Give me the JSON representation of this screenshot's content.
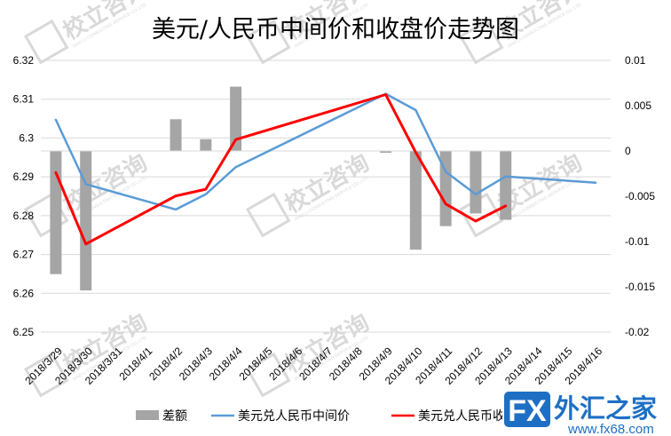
{
  "chart_data": {
    "type": "bar+line",
    "title": "美元/人民币中间价和收盘价走势图",
    "categories": [
      "2018/3/29",
      "2018/3/30",
      "2018/3/31",
      "2018/4/1",
      "2018/4/2",
      "2018/4/3",
      "2018/4/4",
      "2018/4/5",
      "2018/4/6",
      "2018/4/7",
      "2018/4/8",
      "2018/4/9",
      "2018/4/10",
      "2018/4/11",
      "2018/4/12",
      "2018/4/13",
      "2018/4/14",
      "2018/4/15",
      "2018/4/16"
    ],
    "y_left": {
      "min": 6.25,
      "max": 6.32,
      "step": 0.01,
      "ticks": [
        "6.25",
        "6.26",
        "6.27",
        "6.28",
        "6.29",
        "6.3",
        "6.31",
        "6.32"
      ]
    },
    "y_right": {
      "min": -0.02,
      "max": 0.01,
      "step": 0.005,
      "ticks": [
        "-0.02",
        "-0.015",
        "-0.01",
        "-0.005",
        "0",
        "0.005",
        "0.01"
      ]
    },
    "legend_position": "bottom",
    "series": [
      {
        "name": "差额",
        "type": "bar",
        "axis": "right",
        "color": "#a5a5a5",
        "values": [
          -0.0136,
          -0.0154,
          null,
          null,
          0.0035,
          0.0013,
          0.0071,
          null,
          null,
          null,
          null,
          -0.0002,
          -0.0109,
          -0.0083,
          -0.0069,
          -0.0076,
          null,
          null,
          null
        ]
      },
      {
        "name": "美元兑人民币中间价",
        "type": "line",
        "axis": "left",
        "color": "#5b9bd5",
        "values": [
          6.3047,
          6.2881,
          null,
          null,
          6.2816,
          6.2855,
          6.2925,
          null,
          null,
          null,
          null,
          6.3114,
          6.3072,
          6.2913,
          6.2855,
          6.2901,
          null,
          null,
          6.2885
        ]
      },
      {
        "name": "美元兑人民币收盘价",
        "type": "line",
        "axis": "left",
        "color": "#ff0000",
        "values": [
          6.2911,
          6.2727,
          null,
          null,
          6.2851,
          6.2868,
          6.2996,
          null,
          null,
          null,
          null,
          6.3112,
          6.2963,
          6.283,
          6.2786,
          6.2825,
          null,
          null,
          null
        ]
      }
    ]
  },
  "watermark": {
    "text": "校立咨询",
    "sub": "XIAO LI CONSULTING SERVICE CO.,LTD",
    "color": "#d9d9d9"
  },
  "brand": {
    "fx": "FX",
    "name": "外汇之家",
    "url": "www.fx68.com",
    "accent": "#1e6fc4"
  }
}
